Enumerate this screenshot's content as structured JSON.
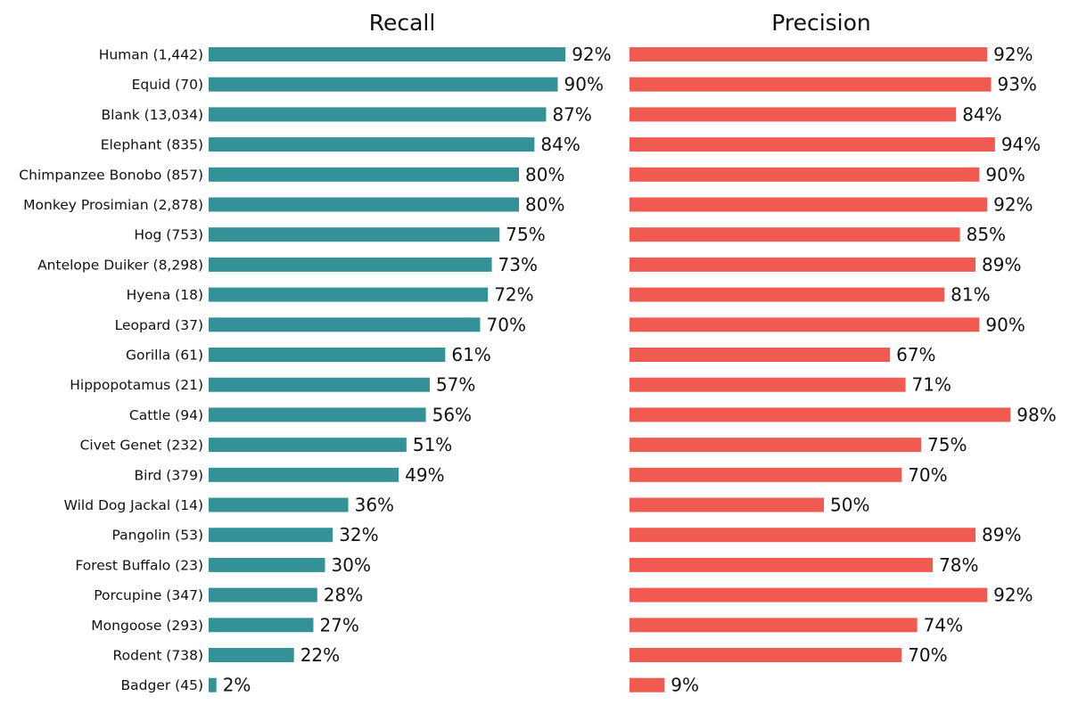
{
  "chart_data": [
    {
      "type": "bar",
      "orientation": "horizontal",
      "title": "Recall",
      "categories": [
        "Human (1,442)",
        "Equid (70)",
        "Blank (13,034)",
        "Elephant (835)",
        "Chimpanzee Bonobo (857)",
        "Monkey Prosimian (2,878)",
        "Hog (753)",
        "Antelope Duiker (8,298)",
        "Hyena (18)",
        "Leopard (37)",
        "Gorilla (61)",
        "Hippopotamus (21)",
        "Cattle (94)",
        "Civet Genet (232)",
        "Bird (379)",
        "Wild Dog Jackal (14)",
        "Pangolin (53)",
        "Forest Buffalo (23)",
        "Porcupine (347)",
        "Mongoose (293)",
        "Rodent (738)",
        "Badger (45)"
      ],
      "values": [
        92,
        90,
        87,
        84,
        80,
        80,
        75,
        73,
        72,
        70,
        61,
        57,
        56,
        51,
        49,
        36,
        32,
        30,
        28,
        27,
        22,
        2
      ],
      "value_labels": [
        "92%",
        "90%",
        "87%",
        "84%",
        "80%",
        "80%",
        "75%",
        "73%",
        "72%",
        "70%",
        "61%",
        "57%",
        "56%",
        "51%",
        "49%",
        "36%",
        "32%",
        "30%",
        "28%",
        "27%",
        "22%",
        "2%"
      ],
      "xlim": [
        0,
        100
      ],
      "unit": "%",
      "color": "#349198",
      "grid": false,
      "axes_visible": false
    },
    {
      "type": "bar",
      "orientation": "horizontal",
      "title": "Precision",
      "categories": [
        "Human (1,442)",
        "Equid (70)",
        "Blank (13,034)",
        "Elephant (835)",
        "Chimpanzee Bonobo (857)",
        "Monkey Prosimian (2,878)",
        "Hog (753)",
        "Antelope Duiker (8,298)",
        "Hyena (18)",
        "Leopard (37)",
        "Gorilla (61)",
        "Hippopotamus (21)",
        "Cattle (94)",
        "Civet Genet (232)",
        "Bird (379)",
        "Wild Dog Jackal (14)",
        "Pangolin (53)",
        "Forest Buffalo (23)",
        "Porcupine (347)",
        "Mongoose (293)",
        "Rodent (738)",
        "Badger (45)"
      ],
      "values": [
        92,
        93,
        84,
        94,
        90,
        92,
        85,
        89,
        81,
        90,
        67,
        71,
        98,
        75,
        70,
        50,
        89,
        78,
        92,
        74,
        70,
        9
      ],
      "value_labels": [
        "92%",
        "93%",
        "84%",
        "94%",
        "90%",
        "92%",
        "85%",
        "89%",
        "81%",
        "90%",
        "67%",
        "71%",
        "98%",
        "75%",
        "70%",
        "50%",
        "89%",
        "78%",
        "92%",
        "74%",
        "70%",
        "9%"
      ],
      "xlim": [
        0,
        100
      ],
      "unit": "%",
      "color": "#f05a50",
      "grid": false,
      "axes_visible": false
    }
  ]
}
